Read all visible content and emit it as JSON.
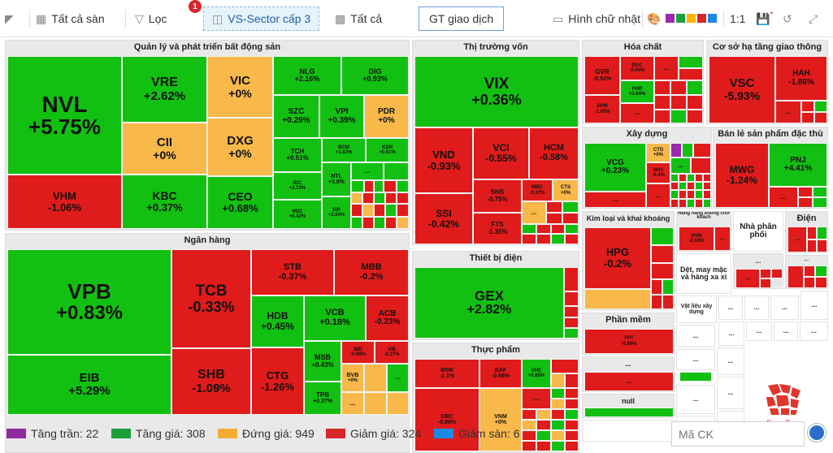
{
  "toolbar": {
    "all_floors": "Tất cả sàn",
    "filter": "Lọc",
    "filter_badge": "1",
    "sector": "VS-Sector cấp 3",
    "all": "Tất cả",
    "trade_value": "GT giao dịch",
    "rectangle": "Hình chữ nhật",
    "ratio": "1:1",
    "palette": [
      "#9c27b0",
      "#1e9e3c",
      "#ffb200",
      "#d7262c",
      "#1e88e5"
    ]
  },
  "groups": {
    "real_estate": "Quản lý và phát triển bất động sản",
    "banking": "Ngân hàng",
    "capital_market": "Thị trường vốn",
    "chemicals": "Hóa chất",
    "infrastructure": "Cơ sở hạ tầng giao thông",
    "construction": "Xây dựng",
    "retail": "Bán lẻ sản phẩm đặc thù",
    "metals": "Kim loại và khai khoáng",
    "nontenant": "Hàng hàng không chở khách",
    "dist": "Nhà phân phối",
    "power": "Điện",
    "electrical": "Thiết bị điện",
    "software": "Phần mềm",
    "textile": "Dệt, may mặc và hàng xa xỉ",
    "building_mat": "Vật liệu xây dựng",
    "food": "Thực phẩm",
    "dots": "...",
    "null": "null"
  },
  "cells": {
    "NVL": {
      "n": "NVL",
      "p": "+5.75%"
    },
    "VHM": {
      "n": "VHM",
      "p": "-1.06%"
    },
    "VRE": {
      "n": "VRE",
      "p": "+2.62%"
    },
    "VIC": {
      "n": "VIC",
      "p": "+0%"
    },
    "CII": {
      "n": "CII",
      "p": "+0%"
    },
    "DXG": {
      "n": "DXG",
      "p": "+0%"
    },
    "KBC": {
      "n": "KBC",
      "p": "+0.37%"
    },
    "CEO": {
      "n": "CEO",
      "p": "+0.68%"
    },
    "NLG": {
      "n": "NLG",
      "p": "+2.16%"
    },
    "DIG": {
      "n": "DIG",
      "p": "+0.93%"
    },
    "SZC": {
      "n": "SZC",
      "p": "+0.29%"
    },
    "VPI": {
      "n": "VPI",
      "p": "+0.39%"
    },
    "PDR": {
      "n": "PDR",
      "p": "+0%"
    },
    "TCH": {
      "n": "TCH",
      "p": "+0.51%"
    },
    "BCM": {
      "n": "BCM",
      "p": "+1.83%"
    },
    "KDH": {
      "n": "KDH",
      "p": "+0.51%"
    },
    "IDC": {
      "n": "IDC",
      "p": "+2.33%"
    },
    "NTL": {
      "n": "NTL",
      "p": "+3.8%"
    },
    "HDC": {
      "n": "HDC",
      "p": "+0.42%"
    },
    "SIP": {
      "n": "SIP",
      "p": "+2.04%"
    },
    "VPB": {
      "n": "VPB",
      "p": "+0.83%"
    },
    "EIB": {
      "n": "EIB",
      "p": "+5.29%"
    },
    "TCB": {
      "n": "TCB",
      "p": "-0.33%"
    },
    "SHB": {
      "n": "SHB",
      "p": "-1.09%"
    },
    "STB": {
      "n": "STB",
      "p": "-0.37%"
    },
    "MBB": {
      "n": "MBB",
      "p": "-0.2%"
    },
    "HDB": {
      "n": "HDB",
      "p": "+0.45%"
    },
    "VCB": {
      "n": "VCB",
      "p": "+0.18%"
    },
    "ACB": {
      "n": "ACB",
      "p": "-0.23%"
    },
    "CTG": {
      "n": "CTG",
      "p": "-1.26%"
    },
    "MSB": {
      "n": "MSB",
      "p": "+0.43%"
    },
    "BID": {
      "n": "BID",
      "p": "-0.98%"
    },
    "VIB": {
      "n": "VIB",
      "p": "-0.27%"
    },
    "TPB": {
      "n": "TPB",
      "p": "+0.37%"
    },
    "BVB": {
      "n": "BVB",
      "p": "+0%"
    },
    "VIX": {
      "n": "VIX",
      "p": "+0.36%"
    },
    "VND": {
      "n": "VND",
      "p": "-0.93%"
    },
    "VCI": {
      "n": "VCI",
      "p": "-0.55%"
    },
    "HCM": {
      "n": "HCM",
      "p": "-0.58%"
    },
    "SSI": {
      "n": "SSI",
      "p": "-0.42%"
    },
    "SHS": {
      "n": "SHS",
      "p": "-0.75%"
    },
    "MBS": {
      "n": "MBS",
      "p": "-0.37%"
    },
    "CTS": {
      "n": "CTS",
      "p": "+0%"
    },
    "FTS": {
      "n": "FTS",
      "p": "-1.35%"
    },
    "GVR": {
      "n": "GVR",
      "p": "-0.51%"
    },
    "DGC": {
      "n": "DGC",
      "p": "-0.44%"
    },
    "PHR": {
      "n": "PHR",
      "p": "+3.64%"
    },
    "DPM": {
      "n": "DPM",
      "p": "-1.05%"
    },
    "VSC": {
      "n": "VSC",
      "p": "-5.93%"
    },
    "HAH": {
      "n": "HAH",
      "p": "-1.86%"
    },
    "VCG": {
      "n": "VCG",
      "p": "+0.23%"
    },
    "CTD": {
      "n": "CTD",
      "p": "+0%"
    },
    "HHV": {
      "n": "HHV",
      "p": "-0.4%"
    },
    "MWG": {
      "n": "MWG",
      "p": "-1.24%"
    },
    "PNJ": {
      "n": "PNJ",
      "p": "+4.41%"
    },
    "HPG": {
      "n": "HPG",
      "p": "-0.2%"
    },
    "HVN": {
      "n": "HVN",
      "p": "-2.02%"
    },
    "GEX": {
      "n": "GEX",
      "p": "+2.82%"
    },
    "FPT": {
      "n": "FPT",
      "p": "-0.89%"
    },
    "MSN": {
      "n": "MSN",
      "p": "-1.1%"
    },
    "BAF": {
      "n": "BAF",
      "p": "-0.98%"
    },
    "VHC": {
      "n": "VHC",
      "p": "+0.85%"
    },
    "DBC": {
      "n": "DBC",
      "p": "-0.88%"
    },
    "VNM": {
      "n": "VNM",
      "p": "+0%"
    }
  },
  "legend": {
    "ceiling": "Tăng trần: 22",
    "up": "Tăng giá: 308",
    "flat": "Đứng giá: 949",
    "down": "Giảm giá: 324",
    "floor": "Giảm sàn: 6",
    "colors": {
      "ceiling": "#8e2a9e",
      "up": "#1a9e3a",
      "flat": "#f5ac35",
      "down": "#d7262c",
      "floor": "#1e88e5"
    }
  },
  "search": {
    "placeholder": "Mã CK"
  },
  "logo": {
    "label": "FoamTree"
  }
}
